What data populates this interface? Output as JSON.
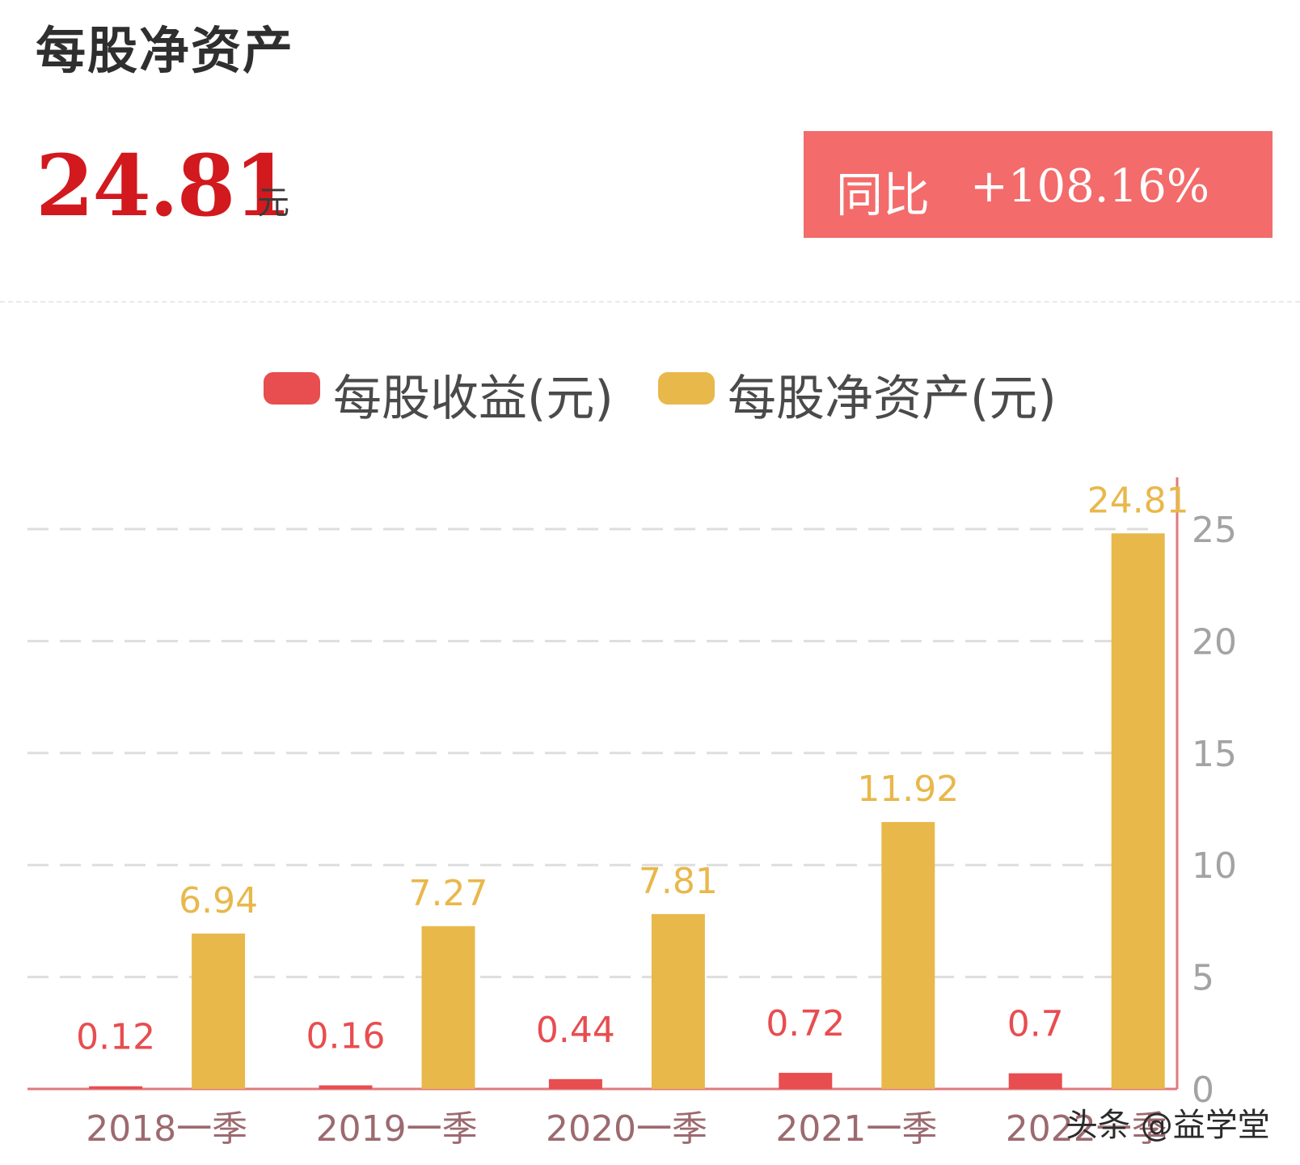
{
  "header": {
    "title": "每股净资产",
    "value": "24.81",
    "unit": "元",
    "yoy_label": "同比",
    "yoy_value": "+108.16%"
  },
  "colors": {
    "eps": "#e84d4f",
    "bvps": "#e8b84b",
    "accent": "#d2191e",
    "yoy_bg": "#f36b6b"
  },
  "chart_data": {
    "type": "bar",
    "categories": [
      "2018一季",
      "2019一季",
      "2020一季",
      "2021一季",
      "2022一季"
    ],
    "series": [
      {
        "name": "每股收益(元)",
        "values": [
          0.12,
          0.16,
          0.44,
          0.72,
          0.7
        ],
        "labels": [
          "0.12",
          "0.16",
          "0.44",
          "0.72",
          "0.7"
        ]
      },
      {
        "name": "每股净资产(元)",
        "values": [
          6.94,
          7.27,
          7.81,
          11.92,
          24.81
        ],
        "labels": [
          "6.94",
          "7.27",
          "7.81",
          "11.92",
          "24.81"
        ]
      }
    ],
    "ylim": [
      0,
      25
    ],
    "yticks": [
      0,
      5,
      10,
      15,
      20,
      25
    ],
    "y_axis_position": "right",
    "grid": true,
    "legend_position": "top-center"
  },
  "watermark": "头条 @益学堂"
}
